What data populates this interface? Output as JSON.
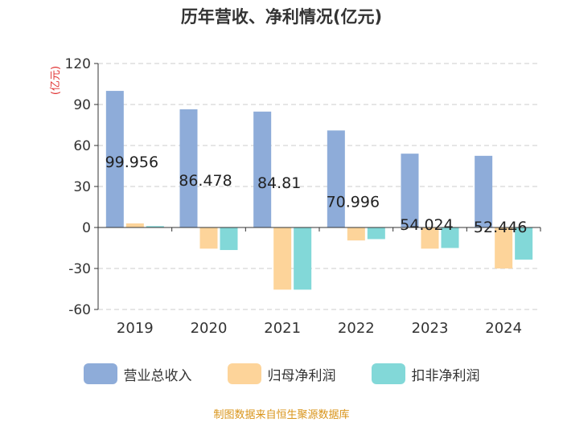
{
  "chart_data": {
    "type": "bar",
    "title": "历年营收、净利情况(亿元)",
    "ylabel": "(亿元)",
    "xlabel": "",
    "ylim": [
      -60,
      120
    ],
    "yticks": [
      -60,
      -30,
      0,
      30,
      60,
      90,
      120
    ],
    "grid": true,
    "legend_position": "bottom",
    "categories": [
      "2019",
      "2020",
      "2021",
      "2022",
      "2023",
      "2024"
    ],
    "series": [
      {
        "name": "营业总收入",
        "color": "#8eacd9",
        "values": [
          99.956,
          86.478,
          84.81,
          70.996,
          54.024,
          52.446
        ]
      },
      {
        "name": "归母净利润",
        "color": "#fdd49a",
        "values": [
          3.0,
          -15.5,
          -45.5,
          -9.5,
          -15.5,
          -30.0
        ]
      },
      {
        "name": "扣非净利润",
        "color": "#82d8d8",
        "values": [
          1.0,
          -16.5,
          -45.5,
          -8.5,
          -15.0,
          -23.5
        ]
      }
    ],
    "data_labels": [
      "99.956",
      "86.478",
      "84.81",
      "70.996",
      "54.024",
      "52.446"
    ]
  },
  "source": "制图数据来自恒生聚源数据库"
}
